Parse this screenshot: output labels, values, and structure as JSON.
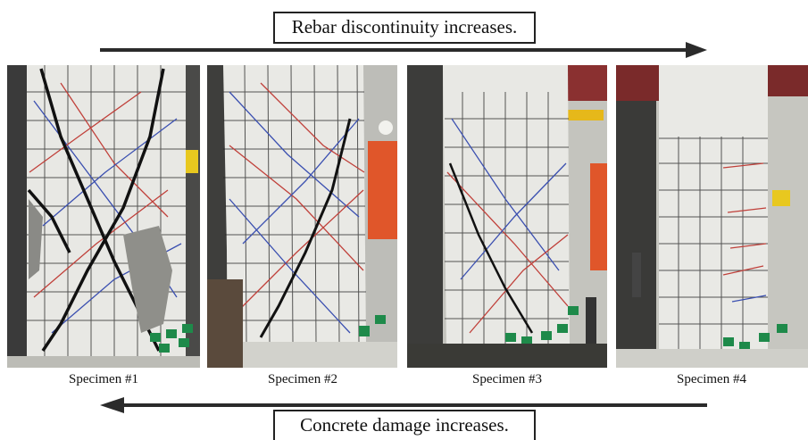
{
  "captions": {
    "top": "Rebar discontinuity increases.",
    "bottom": "Concrete damage increases."
  },
  "specimens": [
    {
      "label": "Specimen #1"
    },
    {
      "label": "Specimen #2"
    },
    {
      "label": "Specimen #3"
    },
    {
      "label": "Specimen #4"
    }
  ],
  "arrows": {
    "top_direction": "right",
    "bottom_direction": "left"
  },
  "colors": {
    "arrow": "#2b2b2b",
    "concrete": "#e9e9e6",
    "grid": "#1f1f1f",
    "crack_blue": "#3a4fb0",
    "crack_red": "#c0403a",
    "sensor_green": "#1e8a4a"
  }
}
